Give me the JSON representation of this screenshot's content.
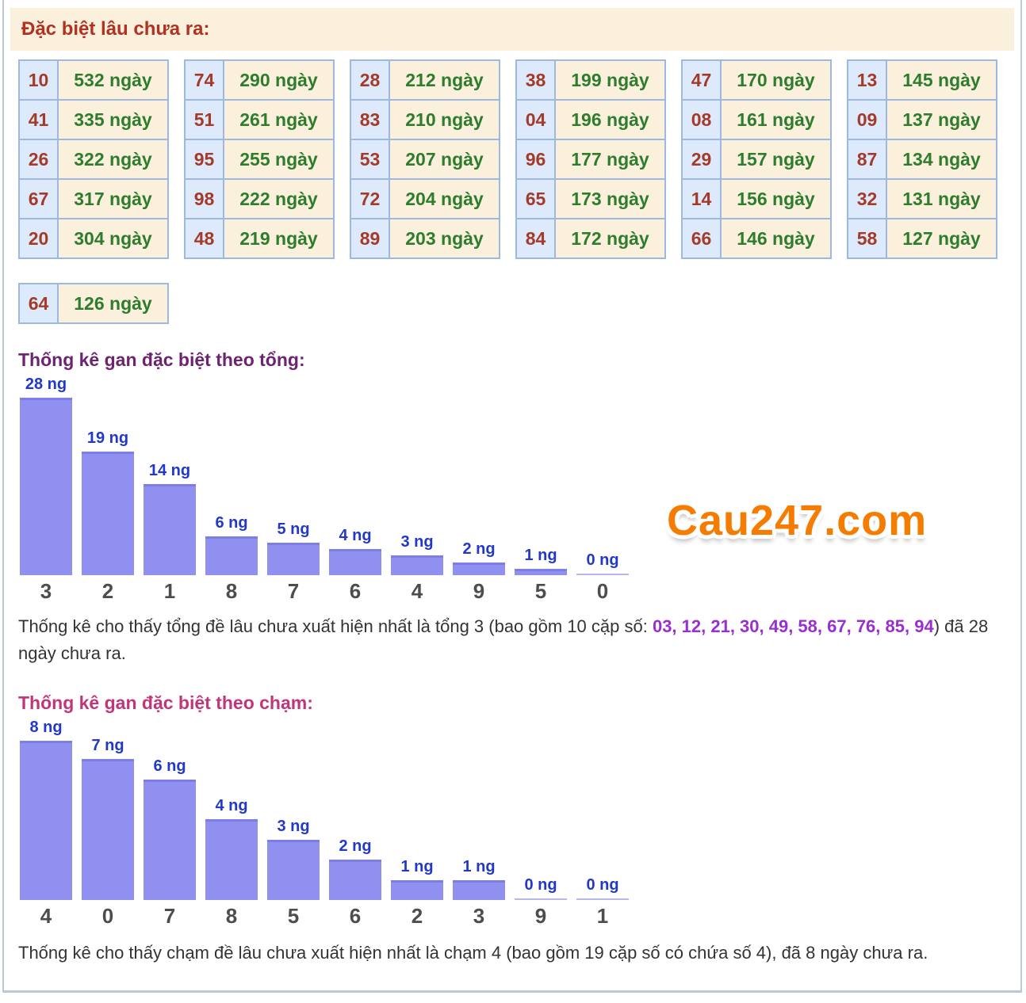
{
  "page": {
    "header": "Đặc biệt lâu chưa ra:",
    "watermark": "Cau247.com"
  },
  "colors": {
    "header_red": "#b13122",
    "pair_number_red": "#a53a28",
    "pair_days_green": "#2e7d2e",
    "pair_number_bg": "#ddeafb",
    "cream_bg": "#faf0dc",
    "cell_border_blue": "#9db9e2",
    "bar_purple": "#9090f0",
    "bar_zero_line": "#b8b8f0",
    "bar_label_blue": "#2138cb",
    "xlabel_gray": "#4d4d4d",
    "title_sum_purple": "#6d2470",
    "title_touch_magenta": "#c13579",
    "highlight_violet": "#9a2fd0",
    "watermark_orange": "#f57c00"
  },
  "pairs_tables": {
    "columns": [
      [
        {
          "num": "10",
          "days": "532 ngày"
        },
        {
          "num": "41",
          "days": "335 ngày"
        },
        {
          "num": "26",
          "days": "322 ngày"
        },
        {
          "num": "67",
          "days": "317 ngày"
        },
        {
          "num": "20",
          "days": "304 ngày"
        }
      ],
      [
        {
          "num": "74",
          "days": "290 ngày"
        },
        {
          "num": "51",
          "days": "261 ngày"
        },
        {
          "num": "95",
          "days": "255 ngày"
        },
        {
          "num": "98",
          "days": "222 ngày"
        },
        {
          "num": "48",
          "days": "219 ngày"
        }
      ],
      [
        {
          "num": "28",
          "days": "212 ngày"
        },
        {
          "num": "83",
          "days": "210 ngày"
        },
        {
          "num": "53",
          "days": "207 ngày"
        },
        {
          "num": "72",
          "days": "204 ngày"
        },
        {
          "num": "89",
          "days": "203 ngày"
        }
      ],
      [
        {
          "num": "38",
          "days": "199 ngày"
        },
        {
          "num": "04",
          "days": "196 ngày"
        },
        {
          "num": "96",
          "days": "177 ngày"
        },
        {
          "num": "65",
          "days": "173 ngày"
        },
        {
          "num": "84",
          "days": "172 ngày"
        }
      ],
      [
        {
          "num": "47",
          "days": "170 ngày"
        },
        {
          "num": "08",
          "days": "161 ngày"
        },
        {
          "num": "29",
          "days": "157 ngày"
        },
        {
          "num": "14",
          "days": "156 ngày"
        },
        {
          "num": "66",
          "days": "146 ngày"
        }
      ],
      [
        {
          "num": "13",
          "days": "145 ngày"
        },
        {
          "num": "09",
          "days": "137 ngày"
        },
        {
          "num": "87",
          "days": "134 ngày"
        },
        {
          "num": "32",
          "days": "131 ngày"
        },
        {
          "num": "58",
          "days": "127 ngày"
        }
      ]
    ],
    "extra": {
      "num": "64",
      "days": "126 ngày"
    }
  },
  "sum_section": {
    "title": "Thống kê gan đặc biệt theo tổng:",
    "note_prefix": "Thống kê cho thấy tổng đề lâu chưa xuất hiện nhất là tổng 3 (bao gồm 10 cặp số: ",
    "note_numbers": "03, 12, 21, 30, 49, 58, 67, 76, 85, 94",
    "note_suffix": ") đã 28 ngày chưa ra."
  },
  "touch_section": {
    "title": "Thống kê gan đặc biệt theo chạm:",
    "note": "Thống kê cho thấy chạm đề lâu chưa xuất hiện nhất là chạm 4 (bao gồm 19 cặp số có chứa số 4), đã 8 ngày chưa ra."
  },
  "chart_data": [
    {
      "type": "bar",
      "title": "Thống kê gan đặc biệt theo tổng:",
      "categories": [
        "3",
        "2",
        "1",
        "8",
        "7",
        "6",
        "4",
        "9",
        "5",
        "0"
      ],
      "values": [
        28,
        19,
        14,
        6,
        5,
        4,
        3,
        2,
        1,
        0
      ],
      "bar_labels": [
        "28 ng",
        "19 ng",
        "14 ng",
        "6 ng",
        "5 ng",
        "4 ng",
        "3 ng",
        "2 ng",
        "1 ng",
        "0 ng"
      ],
      "unit": "ng",
      "xlabel": "",
      "ylabel": "",
      "ylim": [
        0,
        28
      ],
      "grid": false,
      "legend": "none"
    },
    {
      "type": "bar",
      "title": "Thống kê gan đặc biệt theo chạm:",
      "categories": [
        "4",
        "0",
        "7",
        "8",
        "5",
        "6",
        "2",
        "3",
        "9",
        "1"
      ],
      "values": [
        8,
        7,
        6,
        4,
        3,
        2,
        1,
        1,
        0,
        0
      ],
      "bar_labels": [
        "8 ng",
        "7 ng",
        "6 ng",
        "4 ng",
        "3 ng",
        "2 ng",
        "1 ng",
        "1 ng",
        "0 ng",
        "0 ng"
      ],
      "unit": "ng",
      "xlabel": "",
      "ylabel": "",
      "ylim": [
        0,
        8
      ],
      "grid": false,
      "legend": "none"
    }
  ]
}
